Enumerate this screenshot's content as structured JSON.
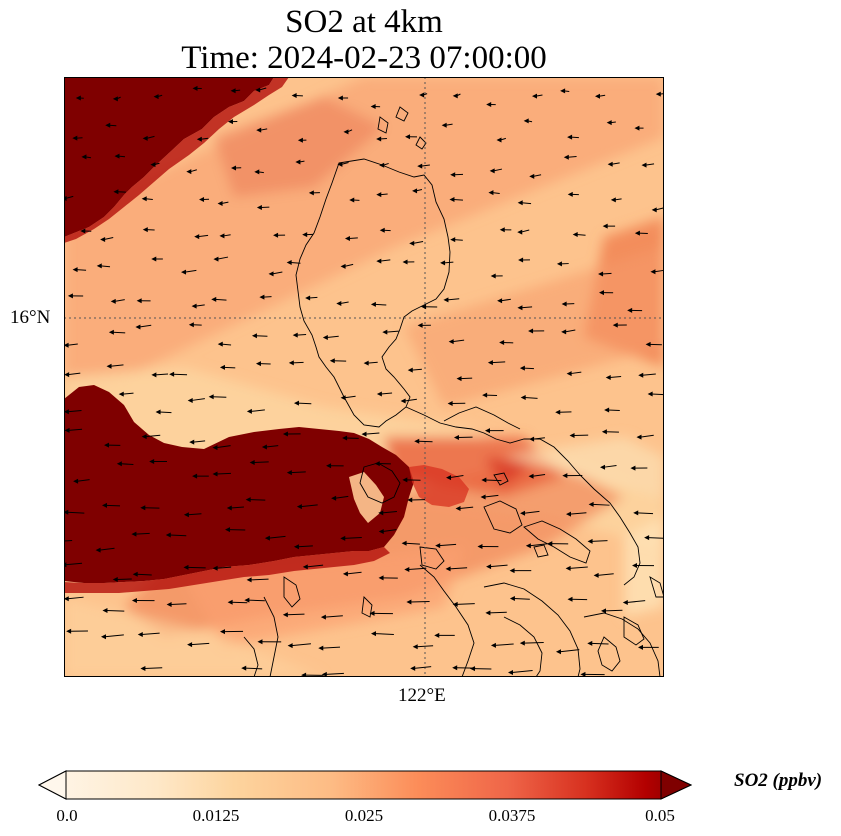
{
  "title": {
    "line1": "SO2 at 4km",
    "line2": "Time: 2024-02-23 07:00:00"
  },
  "map": {
    "lat_label": "16°N",
    "lon_label": "122°E",
    "coastline_color": "#000000",
    "gridline_color": "#555555"
  },
  "colorbar": {
    "label": "SO2 (ppbv)",
    "min": 0.0,
    "max": 0.05,
    "ticks": [
      "0.0",
      "0.0125",
      "0.025",
      "0.0375",
      "0.05"
    ],
    "colormap": "OrRd",
    "colors": [
      "#fff7ec",
      "#fdd49e",
      "#fc8d59",
      "#d7301f",
      "#7f0000"
    ]
  },
  "wind_arrows": {
    "color": "#000000",
    "direction": "westward"
  }
}
